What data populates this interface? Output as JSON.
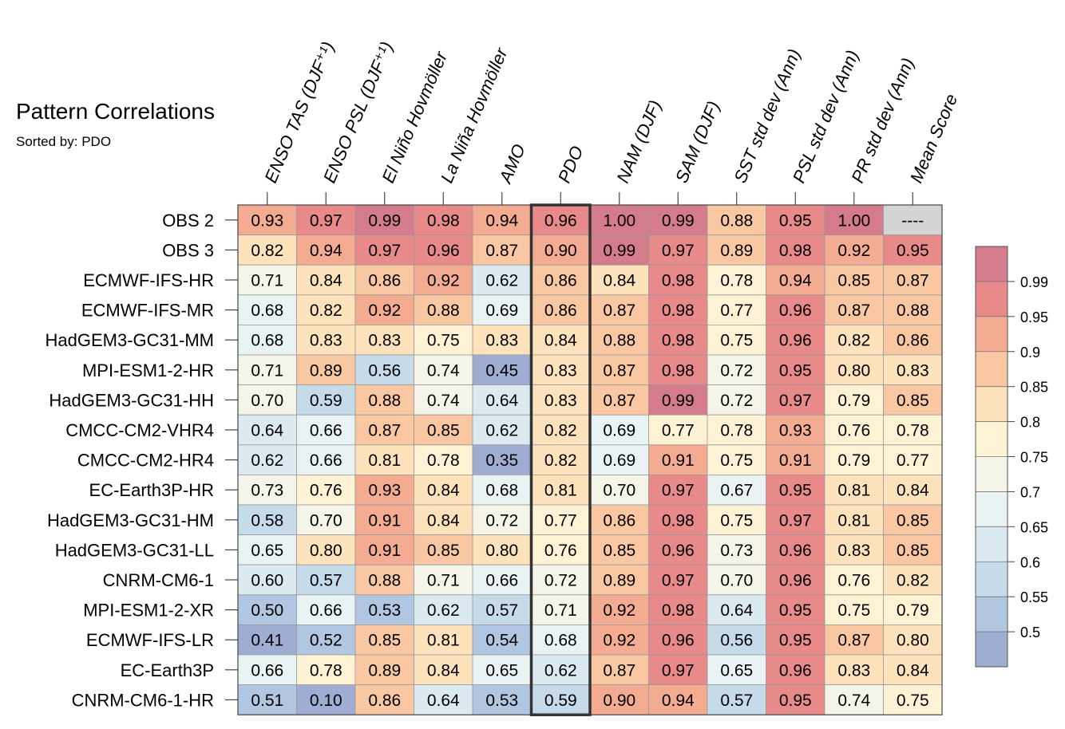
{
  "chart_data": {
    "type": "heatmap",
    "title": "Pattern Correlations",
    "subtitle": "Sorted by: PDO",
    "columns": [
      "ENSO TAS (DJF⁺¹)",
      "ENSO PSL (DJF⁺¹)",
      "El Niño Hovmöller",
      "La Niña Hovmöller",
      "AMO",
      "PDO",
      "NAM (DJF)",
      "SAM (DJF)",
      "SST std dev (Ann)",
      "PSL std dev (Ann)",
      "PR std dev (Ann)",
      "Mean Score"
    ],
    "rows": [
      "OBS 2",
      "OBS 3",
      "ECMWF-IFS-HR",
      "ECMWF-IFS-MR",
      "HadGEM3-GC31-MM",
      "MPI-ESM1-2-HR",
      "HadGEM3-GC31-HH",
      "CMCC-CM2-VHR4",
      "CMCC-CM2-HR4",
      "EC-Earth3P-HR",
      "HadGEM3-GC31-HM",
      "HadGEM3-GC31-LL",
      "CNRM-CM6-1",
      "MPI-ESM1-2-XR",
      "ECMWF-IFS-LR",
      "EC-Earth3P",
      "CNRM-CM6-1-HR"
    ],
    "values": [
      [
        "0.93",
        "0.97",
        "0.99",
        "0.98",
        "0.94",
        "0.96",
        "1.00",
        "0.99",
        "0.88",
        "0.95",
        "1.00",
        "----"
      ],
      [
        "0.82",
        "0.94",
        "0.97",
        "0.96",
        "0.87",
        "0.90",
        "0.99",
        "0.97",
        "0.89",
        "0.98",
        "0.92",
        "0.95"
      ],
      [
        "0.71",
        "0.84",
        "0.86",
        "0.92",
        "0.62",
        "0.86",
        "0.84",
        "0.98",
        "0.78",
        "0.94",
        "0.85",
        "0.87"
      ],
      [
        "0.68",
        "0.82",
        "0.92",
        "0.88",
        "0.69",
        "0.86",
        "0.87",
        "0.98",
        "0.77",
        "0.96",
        "0.87",
        "0.88"
      ],
      [
        "0.68",
        "0.83",
        "0.83",
        "0.75",
        "0.83",
        "0.84",
        "0.88",
        "0.98",
        "0.75",
        "0.96",
        "0.82",
        "0.86"
      ],
      [
        "0.71",
        "0.89",
        "0.56",
        "0.74",
        "0.45",
        "0.83",
        "0.87",
        "0.98",
        "0.72",
        "0.95",
        "0.80",
        "0.83"
      ],
      [
        "0.70",
        "0.59",
        "0.88",
        "0.74",
        "0.64",
        "0.83",
        "0.87",
        "0.99",
        "0.72",
        "0.97",
        "0.79",
        "0.85"
      ],
      [
        "0.64",
        "0.66",
        "0.87",
        "0.85",
        "0.62",
        "0.82",
        "0.69",
        "0.77",
        "0.78",
        "0.93",
        "0.76",
        "0.78"
      ],
      [
        "0.62",
        "0.66",
        "0.81",
        "0.78",
        "0.35",
        "0.82",
        "0.69",
        "0.91",
        "0.75",
        "0.91",
        "0.79",
        "0.77"
      ],
      [
        "0.73",
        "0.76",
        "0.93",
        "0.84",
        "0.68",
        "0.81",
        "0.70",
        "0.97",
        "0.67",
        "0.95",
        "0.81",
        "0.84"
      ],
      [
        "0.58",
        "0.70",
        "0.91",
        "0.84",
        "0.72",
        "0.77",
        "0.86",
        "0.98",
        "0.75",
        "0.97",
        "0.81",
        "0.85"
      ],
      [
        "0.65",
        "0.80",
        "0.91",
        "0.85",
        "0.80",
        "0.76",
        "0.85",
        "0.96",
        "0.73",
        "0.96",
        "0.83",
        "0.85"
      ],
      [
        "0.60",
        "0.57",
        "0.88",
        "0.71",
        "0.66",
        "0.72",
        "0.89",
        "0.97",
        "0.70",
        "0.96",
        "0.76",
        "0.82"
      ],
      [
        "0.50",
        "0.66",
        "0.53",
        "0.62",
        "0.57",
        "0.71",
        "0.92",
        "0.98",
        "0.64",
        "0.95",
        "0.75",
        "0.79"
      ],
      [
        "0.41",
        "0.52",
        "0.85",
        "0.81",
        "0.54",
        "0.68",
        "0.92",
        "0.96",
        "0.56",
        "0.95",
        "0.87",
        "0.80"
      ],
      [
        "0.66",
        "0.78",
        "0.89",
        "0.84",
        "0.65",
        "0.62",
        "0.87",
        "0.97",
        "0.65",
        "0.96",
        "0.83",
        "0.84"
      ],
      [
        "0.51",
        "0.10",
        "0.86",
        "0.64",
        "0.53",
        "0.59",
        "0.90",
        "0.94",
        "0.57",
        "0.95",
        "0.74",
        "0.75"
      ]
    ],
    "highlight_column": "PDO",
    "missing_color": "#d3d3d3",
    "colorbar": {
      "labels": [
        "0.99",
        "0.95",
        "0.9",
        "0.85",
        "0.8",
        "0.75",
        "0.7",
        "0.65",
        "0.6",
        "0.55",
        "0.5"
      ],
      "thresholds": [
        0.5,
        0.55,
        0.6,
        0.65,
        0.7,
        0.75,
        0.8,
        0.85,
        0.9,
        0.95,
        0.99
      ],
      "colors": [
        "#9fadd3",
        "#b1c6e0",
        "#c6dbea",
        "#dbeaf1",
        "#eaf3f3",
        "#f4f4e8",
        "#fdf3d4",
        "#fde2bb",
        "#f9c8a3",
        "#f3ab92",
        "#e8898a",
        "#d47c8c"
      ]
    }
  }
}
